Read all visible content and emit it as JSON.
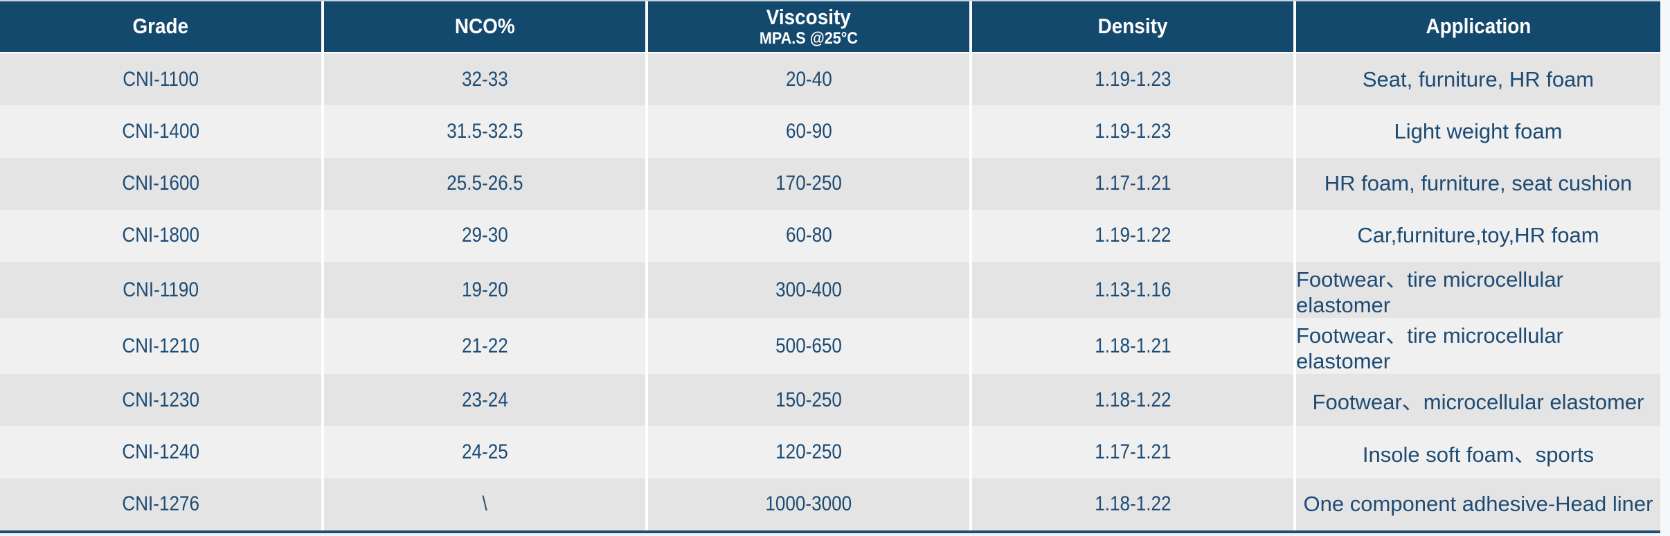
{
  "colors": {
    "header_background": "#14496e",
    "header_text": "#ffffff",
    "row_odd_background": "#e4e4e5",
    "row_even_background": "#f0f0f1",
    "body_text": "#1d4b73",
    "divider": "#ffffff",
    "bottom_border": "#1d4e74"
  },
  "chart_data": {
    "type": "table",
    "columns": [
      {
        "label": "Grade",
        "sub": ""
      },
      {
        "label": "NCO%",
        "sub": ""
      },
      {
        "label": "Viscosity",
        "sub": "MPA.S @25°C"
      },
      {
        "label": "Density",
        "sub": ""
      },
      {
        "label": "Application",
        "sub": ""
      }
    ],
    "rows": [
      [
        "CNI-1100",
        "32-33",
        "20-40",
        "1.19-1.23",
        "Seat, furniture, HR foam"
      ],
      [
        "CNI-1400",
        "31.5-32.5",
        "60-90",
        "1.19-1.23",
        "Light weight foam"
      ],
      [
        "CNI-1600",
        "25.5-26.5",
        "170-250",
        "1.17-1.21",
        "HR foam, furniture, seat cushion"
      ],
      [
        "CNI-1800",
        "29-30",
        "60-80",
        "1.19-1.22",
        "Car,furniture,toy,HR foam"
      ],
      [
        "CNI-1190",
        "19-20",
        "300-400",
        "1.13-1.16",
        "Footwear、tire microcellular elastomer"
      ],
      [
        "CNI-1210",
        "21-22",
        "500-650",
        "1.18-1.21",
        "Footwear、tire microcellular elastomer"
      ],
      [
        "CNI-1230",
        "23-24",
        "150-250",
        "1.18-1.22",
        "Footwear、microcellular elastomer"
      ],
      [
        "CNI-1240",
        "24-25",
        "120-250",
        "1.17-1.21",
        "Insole soft foam、sports"
      ],
      [
        "CNI-1276",
        "\\",
        "1000-3000",
        "1.18-1.22",
        "One component adhesive-Head liner"
      ]
    ]
  }
}
